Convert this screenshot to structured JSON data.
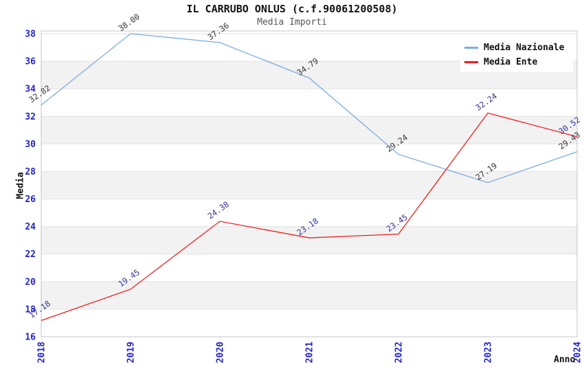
{
  "chart_data": {
    "type": "line",
    "title": "IL CARRUBO ONLUS (c.f.90061200508)",
    "subtitle": "Media Importi",
    "xlabel": "Anno",
    "ylabel": "Media",
    "x": [
      2018,
      2019,
      2020,
      2021,
      2022,
      2023,
      2024
    ],
    "series": [
      {
        "name": "Media Nazionale",
        "color": "#7aacdf",
        "label_color": "#333333",
        "values": [
          32.82,
          38.0,
          37.36,
          34.79,
          29.24,
          27.19,
          29.43
        ],
        "labels": [
          "32.82",
          "38.00",
          "37.36",
          "34.79",
          "29.24",
          "27.19",
          "29.43"
        ]
      },
      {
        "name": "Media Ente",
        "color": "#ee1c1c",
        "label_color": "#333399",
        "values": [
          17.18,
          19.45,
          24.38,
          23.18,
          23.45,
          32.24,
          30.52
        ],
        "labels": [
          "17.18",
          "19.45",
          "24.38",
          "23.18",
          "23.45",
          "32.24",
          "30.52"
        ]
      }
    ],
    "ylim": [
      16,
      38.2
    ],
    "yticks": [
      16,
      18,
      20,
      22,
      24,
      26,
      28,
      30,
      32,
      34,
      36,
      38
    ],
    "grid": true,
    "legend_position": "top-right",
    "styles": {
      "tick_color": "#2222cc",
      "band_color": "#f2f2f2",
      "grid_color": "#e2e2e2",
      "border_color": "#c4c4c4"
    }
  }
}
